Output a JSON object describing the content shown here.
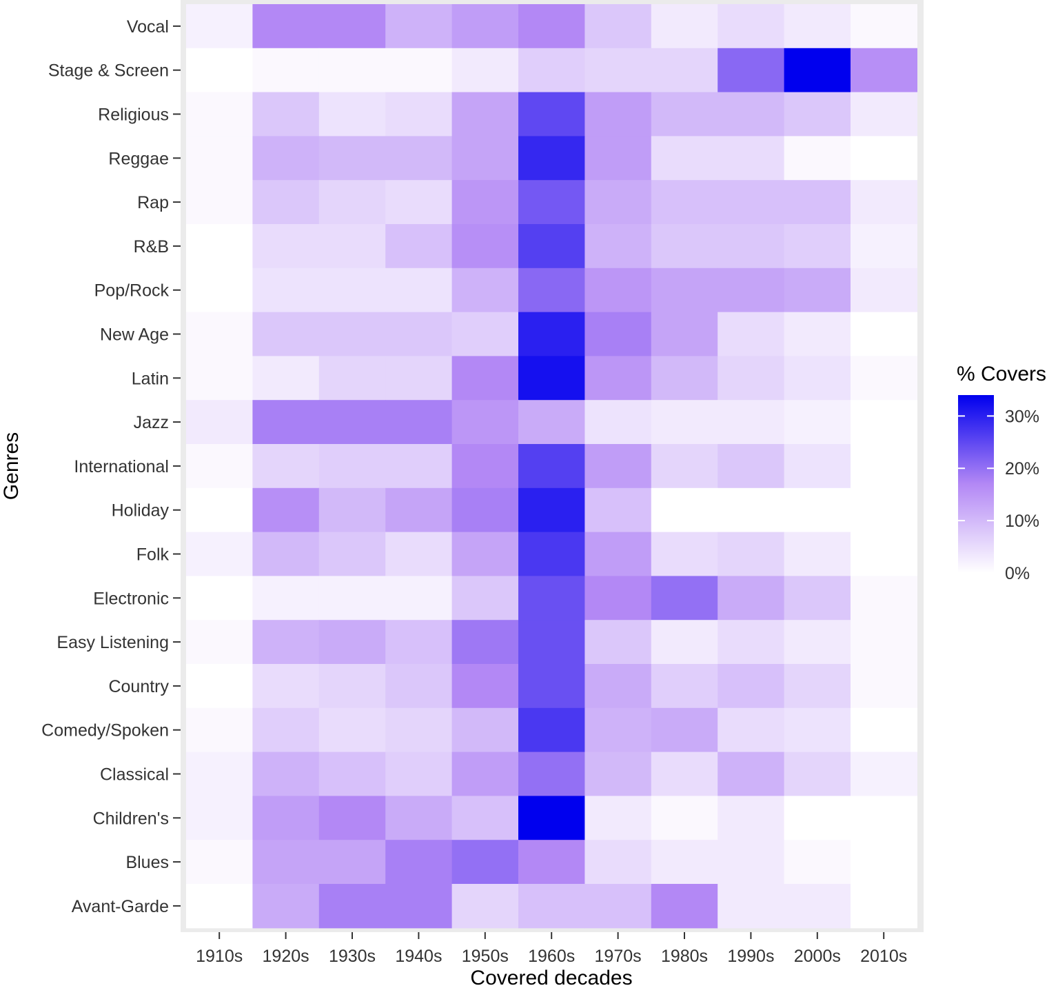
{
  "chart_data": {
    "type": "heatmap",
    "title": "",
    "xlabel": "Covered decades",
    "ylabel": "Genres",
    "x": [
      "1910s",
      "1920s",
      "1930s",
      "1940s",
      "1950s",
      "1960s",
      "1970s",
      "1980s",
      "1990s",
      "2000s",
      "2010s"
    ],
    "y": [
      "Vocal",
      "Stage & Screen",
      "Religious",
      "Reggae",
      "Rap",
      "R&B",
      "Pop/Rock",
      "New Age",
      "Latin",
      "Jazz",
      "International",
      "Holiday",
      "Folk",
      "Electronic",
      "Easy Listening",
      "Country",
      "Comedy/Spoken",
      "Classical",
      "Children's",
      "Blues",
      "Avant-Garde"
    ],
    "values": [
      [
        2,
        17,
        17,
        11,
        14,
        17,
        8,
        3,
        5,
        3,
        1
      ],
      [
        0,
        1,
        1,
        1,
        3,
        7,
        6,
        6,
        21,
        34,
        16
      ],
      [
        1,
        8,
        4,
        5,
        13,
        25,
        14,
        10,
        10,
        8,
        3
      ],
      [
        1,
        11,
        10,
        10,
        13,
        29,
        14,
        5,
        5,
        1,
        0
      ],
      [
        1,
        8,
        6,
        5,
        15,
        23,
        12,
        9,
        9,
        9,
        3
      ],
      [
        0,
        5,
        5,
        9,
        16,
        26,
        11,
        8,
        8,
        7,
        2
      ],
      [
        0,
        4,
        4,
        4,
        11,
        21,
        15,
        13,
        13,
        12,
        3
      ],
      [
        1,
        8,
        8,
        8,
        7,
        30,
        18,
        13,
        5,
        3,
        0
      ],
      [
        1,
        3,
        6,
        6,
        17,
        32,
        15,
        10,
        6,
        4,
        1
      ],
      [
        3,
        18,
        18,
        18,
        15,
        12,
        4,
        3,
        3,
        2,
        0
      ],
      [
        1,
        6,
        7,
        7,
        17,
        26,
        14,
        6,
        8,
        4,
        0
      ],
      [
        0,
        16,
        10,
        13,
        18,
        30,
        9,
        0,
        0,
        0,
        0
      ],
      [
        2,
        10,
        8,
        5,
        13,
        27,
        14,
        5,
        6,
        3,
        0
      ],
      [
        0,
        2,
        2,
        2,
        8,
        24,
        17,
        20,
        12,
        8,
        1
      ],
      [
        1,
        11,
        12,
        9,
        19,
        24,
        8,
        3,
        5,
        3,
        1
      ],
      [
        0,
        5,
        6,
        8,
        17,
        24,
        12,
        7,
        9,
        6,
        1
      ],
      [
        1,
        7,
        5,
        6,
        10,
        27,
        11,
        12,
        5,
        4,
        0
      ],
      [
        2,
        11,
        9,
        7,
        14,
        20,
        10,
        5,
        11,
        6,
        2
      ],
      [
        2,
        14,
        17,
        12,
        9,
        34,
        3,
        1,
        3,
        0,
        0
      ],
      [
        1,
        13,
        13,
        18,
        20,
        17,
        5,
        3,
        3,
        1,
        0
      ],
      [
        0,
        12,
        18,
        18,
        6,
        9,
        9,
        17,
        3,
        3,
        0
      ]
    ],
    "color_scale": {
      "low": "#ffffff",
      "mid": "#b388f5",
      "high": "#0000ee",
      "domain": [
        0,
        34
      ]
    },
    "legend": {
      "title": "% Covers",
      "ticks": [
        0,
        10,
        20,
        30
      ],
      "tick_labels": [
        "0%",
        "10%",
        "20%",
        "30%"
      ],
      "position": "right"
    },
    "grid": true,
    "panel_background": "#ebebeb"
  }
}
